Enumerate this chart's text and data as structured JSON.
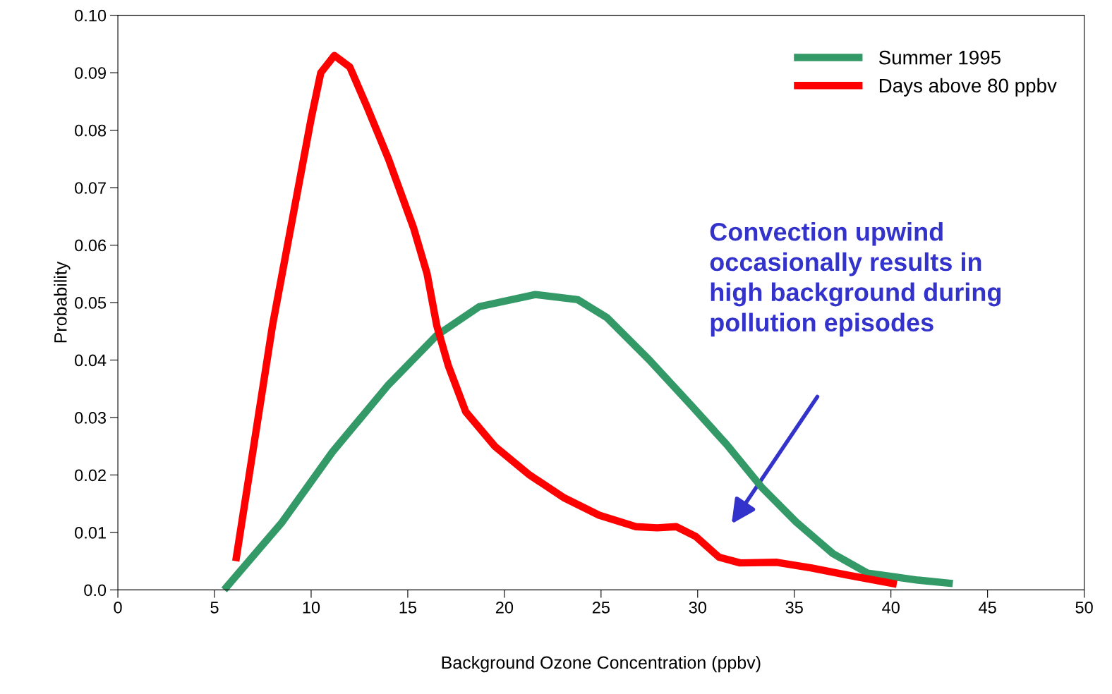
{
  "chart_data": {
    "type": "line",
    "xlabel": "Background Ozone Concentration (ppbv)",
    "ylabel": "Probability",
    "xlim": [
      0,
      50
    ],
    "xticks": [
      0,
      5,
      10,
      15,
      20,
      25,
      30,
      35,
      40,
      45,
      50
    ],
    "ylim": [
      0,
      0.1
    ],
    "yticks": [
      {
        "value": 0,
        "label": "0.0"
      },
      0.01,
      0.02,
      0.03,
      0.04,
      0.05,
      0.06,
      0.07,
      0.08,
      0.09,
      {
        "value": 0.1,
        "label": "0.10"
      }
    ],
    "grid": false,
    "legend": "top right",
    "marker": "none",
    "line_style": "solid",
    "series": [
      {
        "name": "Summer 1995",
        "color": "#339966",
        "x": [
          5.5,
          8.5,
          11.1,
          14.0,
          16.5,
          18.7,
          21.6,
          23.8,
          25.3,
          27.5,
          29.7,
          31.5,
          33.3,
          35.1,
          37.0,
          38.8,
          41.4,
          43.2
        ],
        "values": [
          0.0,
          0.0118,
          0.024,
          0.0357,
          0.0443,
          0.0493,
          0.0514,
          0.0505,
          0.0474,
          0.04,
          0.032,
          0.0253,
          0.0179,
          0.0118,
          0.0063,
          0.0029,
          0.0017,
          0.0011
        ]
      },
      {
        "name": "Days above 80 ppbv",
        "color": "#ff0000",
        "x": [
          6.1,
          8.0,
          10.0,
          10.5,
          11.2,
          12.0,
          12.9,
          14.0,
          15.3,
          16.0,
          16.5,
          17.1,
          18.0,
          19.5,
          21.3,
          23.1,
          24.9,
          26.8,
          27.9,
          28.9,
          29.9,
          31.1,
          32.2,
          34.1,
          35.9,
          37.7,
          40.3
        ],
        "values": [
          0.005,
          0.046,
          0.082,
          0.09,
          0.093,
          0.091,
          0.084,
          0.075,
          0.063,
          0.055,
          0.046,
          0.039,
          0.031,
          0.025,
          0.02,
          0.016,
          0.013,
          0.011,
          0.0108,
          0.011,
          0.0093,
          0.0057,
          0.0047,
          0.0048,
          0.0038,
          0.0026,
          0.001
        ]
      }
    ],
    "annotations": [
      "Convection upwind\noccasionally results in\nhigh background during\npollution episodes"
    ]
  }
}
